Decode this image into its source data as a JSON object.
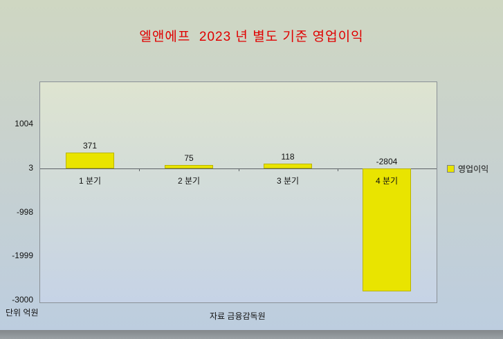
{
  "title": "엘앤에프  2023 년 별도 기준 영업이익",
  "footer": {
    "unit": "단위 억원",
    "source": "자료 금융감독원"
  },
  "legend": {
    "label": "영업이익",
    "swatch_color": "#e9e400"
  },
  "chart_data": {
    "type": "bar",
    "title": "엘앤에프  2023 년 별도 기준 영업이익",
    "categories": [
      "1 분기",
      "2 분기",
      "3 분기",
      "4 분기"
    ],
    "series": [
      {
        "name": "영업이익",
        "values": [
          371,
          75,
          118,
          -2804
        ]
      }
    ],
    "value_labels": [
      "371",
      "75",
      "118",
      "-2804"
    ],
    "y_ticks": [
      1004,
      3,
      -998,
      -1999,
      -3000
    ],
    "ylim": [
      -3178,
      2052
    ],
    "baseline_value": 3,
    "bar_color": "#e9e400",
    "title_color": "#e00000",
    "grid": false,
    "legend_position": "right"
  }
}
